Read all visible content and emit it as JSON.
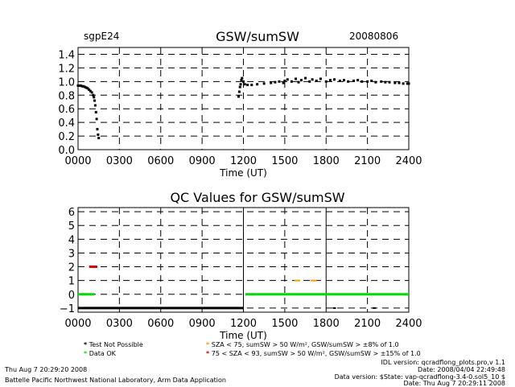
{
  "header": {
    "site": "sgpE24",
    "title": "GSW/sumSW",
    "date": "20080806"
  },
  "chart_data": [
    {
      "type": "scatter",
      "title": "GSW/sumSW",
      "xlabel": "Time (UT)",
      "ylabel": "",
      "xlim": [
        0,
        2400
      ],
      "ylim": [
        0,
        1.5
      ],
      "xticks": [
        "0000",
        "0300",
        "0600",
        "0900",
        "1200",
        "1500",
        "1800",
        "2100",
        "2400"
      ],
      "yticks": [
        "0.0",
        "0.2",
        "0.4",
        "0.6",
        "0.8",
        "1.0",
        "1.2",
        "1.4"
      ],
      "grid": true,
      "series": [
        {
          "color": "#000000",
          "x": [
            0,
            10,
            20,
            30,
            40,
            50,
            60,
            70,
            80,
            90,
            100,
            110,
            115,
            120,
            125,
            130,
            135,
            140,
            145,
            150,
            1165,
            1170,
            1175,
            1180,
            1185,
            1190,
            1200,
            1210,
            1230,
            1260,
            1300,
            1350,
            1400,
            1430,
            1460,
            1490,
            1500,
            1520,
            1550,
            1580,
            1600,
            1620,
            1650,
            1680,
            1700,
            1730,
            1760,
            1800,
            1830,
            1860,
            1900,
            1930,
            1960,
            2000,
            2030,
            2060,
            2100,
            2130,
            2160,
            2200,
            2230,
            2260,
            2300,
            2330,
            2360,
            2390,
            2400
          ],
          "y": [
            0.94,
            0.94,
            0.94,
            0.93,
            0.93,
            0.92,
            0.91,
            0.9,
            0.88,
            0.86,
            0.84,
            0.8,
            0.77,
            0.72,
            0.65,
            0.55,
            0.45,
            0.3,
            0.22,
            0.17,
            0.78,
            0.85,
            0.92,
            0.96,
            1.02,
            1.05,
            1.0,
            0.96,
            0.95,
            0.95,
            0.96,
            0.97,
            0.98,
            0.99,
            1.0,
            0.98,
            1.01,
            1.03,
            1.0,
            1.04,
            0.99,
            1.02,
            1.05,
            1.0,
            1.03,
            1.01,
            1.04,
            1.0,
            1.02,
            1.03,
            1.01,
            1.02,
            1.0,
            1.01,
            1.02,
            1.0,
            1.0,
            1.01,
            0.99,
            1.0,
            0.99,
            0.99,
            0.98,
            0.98,
            0.97,
            0.97,
            0.97
          ]
        }
      ]
    },
    {
      "type": "scatter",
      "title": "QC Values for GSW/sumSW",
      "xlabel": "Time (UT)",
      "ylabel": "",
      "xlim": [
        0,
        2400
      ],
      "ylim": [
        -1.3,
        6.3
      ],
      "xticks": [
        "0000",
        "0300",
        "0600",
        "0900",
        "1200",
        "1500",
        "1800",
        "2100",
        "2400"
      ],
      "yticks": [
        "−1",
        "0",
        "1",
        "2",
        "3",
        "4",
        "5",
        "6"
      ],
      "grid": true,
      "segments": [
        {
          "color": "#000000",
          "x": [
            0,
            1200
          ],
          "y": -1
        },
        {
          "color": "#00dd00",
          "x": [
            0,
            120
          ],
          "y": 0
        },
        {
          "color": "#00dd00",
          "x": [
            1215,
            2400
          ],
          "y": 0
        },
        {
          "color": "#dd0000",
          "x": [
            80,
            140
          ],
          "y": 2
        }
      ],
      "points": [
        {
          "color": "#ff9900",
          "x": 1580,
          "y": 1
        },
        {
          "color": "#ff9900",
          "x": 1600,
          "y": 1
        },
        {
          "color": "#ff9900",
          "x": 1700,
          "y": 1
        },
        {
          "color": "#ff9900",
          "x": 1720,
          "y": 1
        },
        {
          "color": "#000000",
          "x": 1860,
          "y": -1
        },
        {
          "color": "#000000",
          "x": 2150,
          "y": -1
        }
      ]
    }
  ],
  "legend": [
    {
      "marker": "*",
      "color": "#000000",
      "text": "Test Not Possible"
    },
    {
      "marker": "*",
      "color": "#00dd00",
      "text": "Data OK"
    },
    {
      "marker": "*",
      "color": "#ff9900",
      "text": "SZA < 75, sumSW > 50 W/m², GSW/sumSW > ±8% of 1.0"
    },
    {
      "marker": "*",
      "color": "#dd0000",
      "text": "75 < SZA < 93, sumSW > 50 W/m², GSW/sumSW > ±15% of 1.0"
    }
  ],
  "footer": {
    "left_line1": "Thu Aug  7 20:29:20 2008",
    "left_line2": "Battelle Pacific Northwest National Laboratory, Arm Data Application",
    "right_line1": "IDL version: qcradflong_plots.pro,v 1.1",
    "right_line2": "Date: 2008/04/04 22:49:48",
    "right_line3": "Data version: $State: vap-qcradflong-3.4-0.sol5_10 $",
    "right_line4": "Date: Thu Aug  7 20:29:11 2008"
  }
}
